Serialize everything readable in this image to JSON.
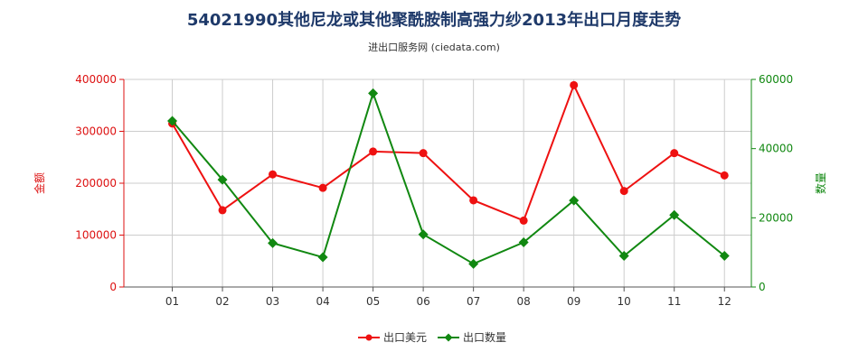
{
  "title": "54021990其他尼龙或其他聚酰胺制高强力纱2013年出口月度走势",
  "subtitle": "进出口服务网 (ciedata.com)",
  "chart_data": {
    "type": "line",
    "categories": [
      "01",
      "02",
      "03",
      "04",
      "05",
      "06",
      "07",
      "08",
      "09",
      "10",
      "11",
      "12"
    ],
    "y_left": {
      "label": "金额",
      "range": [
        0,
        400000
      ],
      "ticks": [
        0,
        100000,
        200000,
        300000,
        400000
      ],
      "tick_labels": [
        "0",
        "100000",
        "200000",
        "300000",
        "400000"
      ],
      "color": "#dd1111"
    },
    "y_right": {
      "label": "数量",
      "range": [
        0,
        60000
      ],
      "ticks": [
        0,
        20000,
        40000,
        60000
      ],
      "tick_labels": [
        "0",
        "20000",
        "40000",
        "60000"
      ],
      "color": "#118811"
    },
    "series": [
      {
        "name": "出口美元",
        "axis": "left",
        "color": "#ee1111",
        "values": [
          315000,
          148000,
          217000,
          191000,
          261000,
          258000,
          167000,
          128000,
          389000,
          185000,
          258000,
          215000
        ]
      },
      {
        "name": "出口数量",
        "axis": "right",
        "color": "#118811",
        "values": [
          48000,
          31000,
          12700,
          8600,
          56000,
          15200,
          6700,
          12900,
          25000,
          9000,
          20800,
          9000
        ]
      }
    ],
    "grid": true,
    "legend_position": "bottom-center"
  }
}
